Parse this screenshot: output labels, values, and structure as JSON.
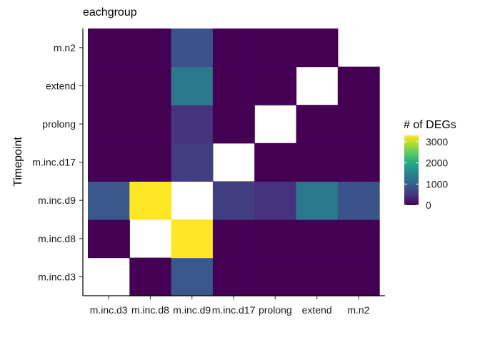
{
  "chart_data": {
    "type": "heatmap",
    "title": "eachgroup",
    "ylabel": "Timepoint",
    "xlabel": "",
    "x_categories": [
      "m.inc.d3",
      "m.inc.d8",
      "m.inc.d9",
      "m.inc.d17",
      "prolong",
      "extend",
      "m.n2"
    ],
    "y_categories": [
      "m.inc.d3",
      "m.inc.d8",
      "m.inc.d9",
      "m.inc.d17",
      "prolong",
      "extend",
      "m.n2"
    ],
    "cells": [
      {
        "x": "m.inc.d8",
        "y": "m.inc.d3",
        "value": 0
      },
      {
        "x": "m.inc.d9",
        "y": "m.inc.d3",
        "value": 900
      },
      {
        "x": "m.inc.d17",
        "y": "m.inc.d3",
        "value": 0
      },
      {
        "x": "prolong",
        "y": "m.inc.d3",
        "value": 0
      },
      {
        "x": "extend",
        "y": "m.inc.d3",
        "value": 0
      },
      {
        "x": "m.n2",
        "y": "m.inc.d3",
        "value": 0
      },
      {
        "x": "m.inc.d3",
        "y": "m.inc.d8",
        "value": 0
      },
      {
        "x": "m.inc.d9",
        "y": "m.inc.d8",
        "value": 3300
      },
      {
        "x": "m.inc.d17",
        "y": "m.inc.d8",
        "value": 0
      },
      {
        "x": "prolong",
        "y": "m.inc.d8",
        "value": 0
      },
      {
        "x": "extend",
        "y": "m.inc.d8",
        "value": 0
      },
      {
        "x": "m.n2",
        "y": "m.inc.d8",
        "value": 0
      },
      {
        "x": "m.inc.d3",
        "y": "m.inc.d9",
        "value": 900
      },
      {
        "x": "m.inc.d8",
        "y": "m.inc.d9",
        "value": 3300
      },
      {
        "x": "m.inc.d17",
        "y": "m.inc.d9",
        "value": 600
      },
      {
        "x": "prolong",
        "y": "m.inc.d9",
        "value": 480
      },
      {
        "x": "extend",
        "y": "m.inc.d9",
        "value": 1300
      },
      {
        "x": "m.n2",
        "y": "m.inc.d9",
        "value": 850
      },
      {
        "x": "m.inc.d3",
        "y": "m.inc.d17",
        "value": 0
      },
      {
        "x": "m.inc.d8",
        "y": "m.inc.d17",
        "value": 0
      },
      {
        "x": "m.inc.d9",
        "y": "m.inc.d17",
        "value": 600
      },
      {
        "x": "prolong",
        "y": "m.inc.d17",
        "value": 0
      },
      {
        "x": "extend",
        "y": "m.inc.d17",
        "value": 0
      },
      {
        "x": "m.n2",
        "y": "m.inc.d17",
        "value": 0
      },
      {
        "x": "m.inc.d3",
        "y": "prolong",
        "value": 0
      },
      {
        "x": "m.inc.d8",
        "y": "prolong",
        "value": 0
      },
      {
        "x": "m.inc.d9",
        "y": "prolong",
        "value": 480
      },
      {
        "x": "m.inc.d17",
        "y": "prolong",
        "value": 0
      },
      {
        "x": "extend",
        "y": "prolong",
        "value": 0
      },
      {
        "x": "m.n2",
        "y": "prolong",
        "value": 0
      },
      {
        "x": "m.inc.d3",
        "y": "extend",
        "value": 0
      },
      {
        "x": "m.inc.d8",
        "y": "extend",
        "value": 0
      },
      {
        "x": "m.inc.d9",
        "y": "extend",
        "value": 1300
      },
      {
        "x": "m.inc.d17",
        "y": "extend",
        "value": 0
      },
      {
        "x": "prolong",
        "y": "extend",
        "value": 0
      },
      {
        "x": "m.n2",
        "y": "extend",
        "value": 0
      },
      {
        "x": "m.inc.d3",
        "y": "m.n2",
        "value": 0
      },
      {
        "x": "m.inc.d8",
        "y": "m.n2",
        "value": 0
      },
      {
        "x": "m.inc.d9",
        "y": "m.n2",
        "value": 850
      },
      {
        "x": "m.inc.d17",
        "y": "m.n2",
        "value": 0
      },
      {
        "x": "prolong",
        "y": "m.n2",
        "value": 0
      },
      {
        "x": "extend",
        "y": "m.n2",
        "value": 0
      }
    ],
    "value_range": [
      0,
      3300
    ],
    "colorscale": "viridis",
    "legend": {
      "title": "# of DEGs",
      "ticks": [
        0,
        1000,
        2000,
        3000
      ],
      "tick_labels": [
        "0",
        "1000",
        "2000",
        "3000"
      ],
      "placement": "right"
    },
    "grid": false
  }
}
